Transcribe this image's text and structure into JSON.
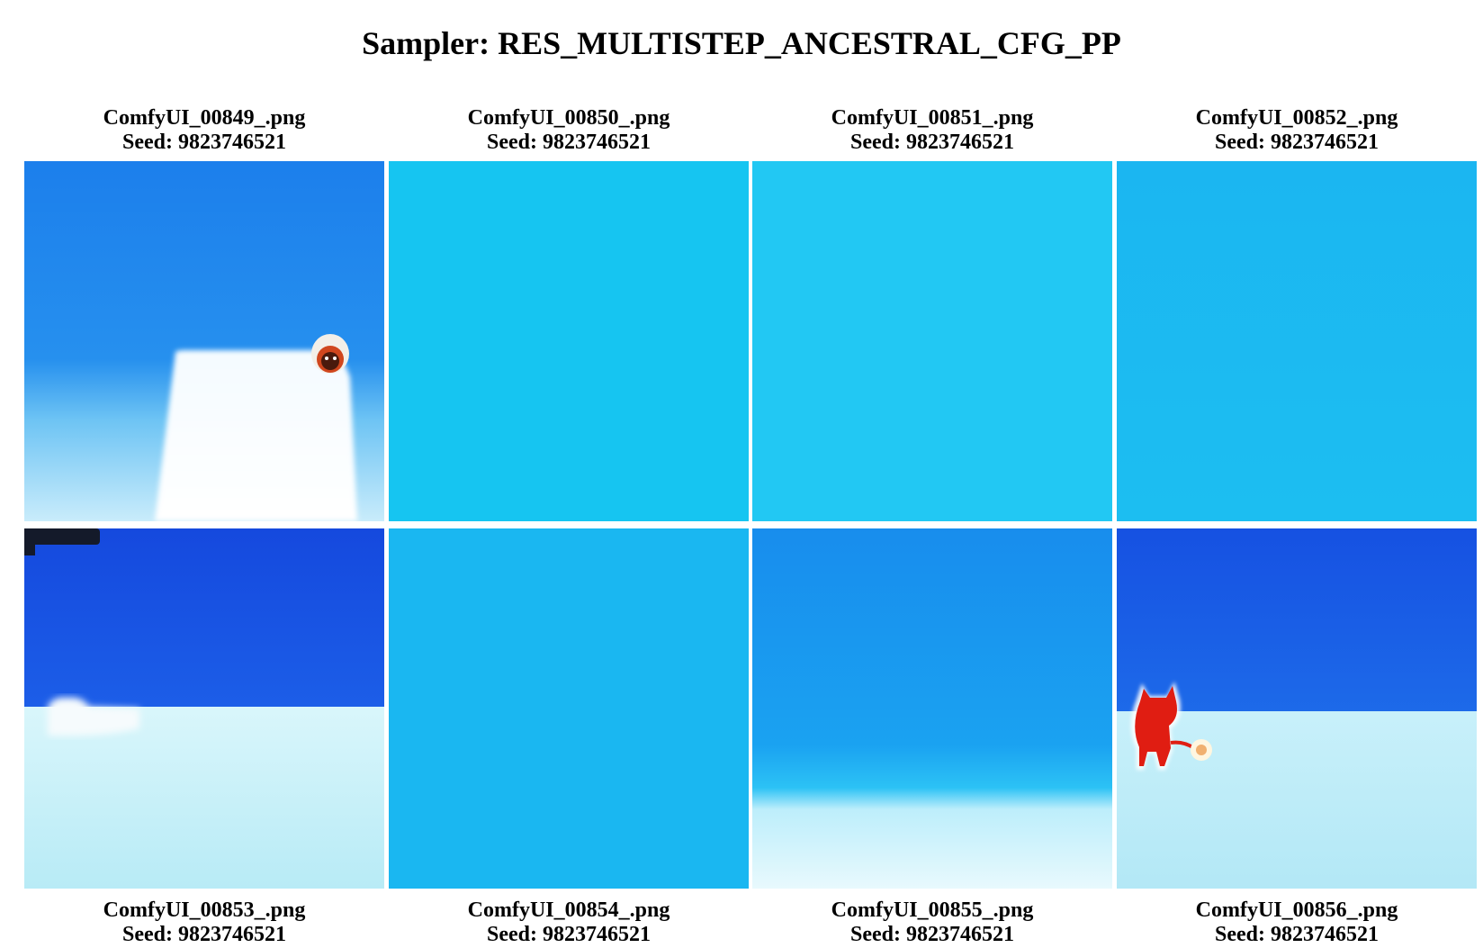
{
  "page": {
    "title": "Sampler: RES_MULTISTEP_ANCESTRAL_CFG_PP"
  },
  "rows": [
    {
      "images": [
        {
          "filename": "ComfyUI_00849_.png",
          "seed": "Seed: 9823746521"
        },
        {
          "filename": "ComfyUI_00850_.png",
          "seed": "Seed: 9823746521"
        },
        {
          "filename": "ComfyUI_00851_.png",
          "seed": "Seed: 9823746521"
        },
        {
          "filename": "ComfyUI_00852_.png",
          "seed": "Seed: 9823746521"
        }
      ]
    },
    {
      "images": [
        {
          "filename": "ComfyUI_00853_.png",
          "seed": "Seed: 9823746521"
        },
        {
          "filename": "ComfyUI_00854_.png",
          "seed": "Seed: 9823746521"
        },
        {
          "filename": "ComfyUI_00855_.png",
          "seed": "Seed: 9823746521"
        },
        {
          "filename": "ComfyUI_00856_.png",
          "seed": "Seed: 9823746521"
        }
      ]
    }
  ]
}
